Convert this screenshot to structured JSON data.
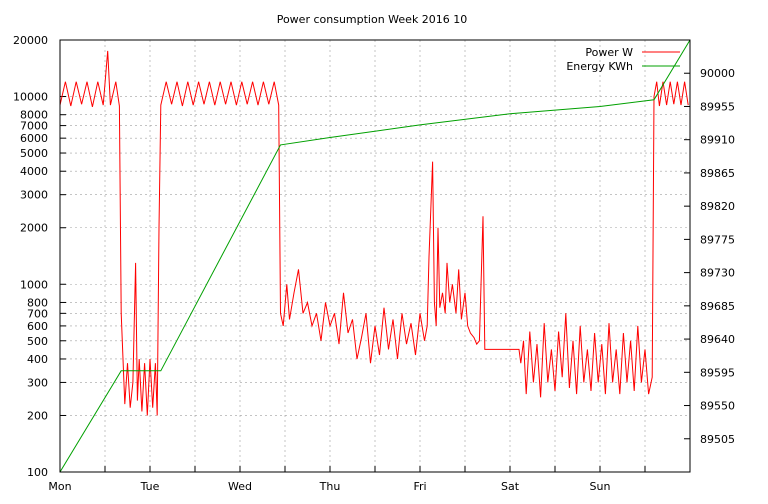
{
  "chart_data": {
    "type": "line",
    "title": "Power consumption Week 2016 10",
    "xlabel": "",
    "ylabel": "",
    "x_ticks": [
      "Mon",
      "Tue",
      "Wed",
      "Thu",
      "Fri",
      "Sat",
      "Sun"
    ],
    "x_range_days": [
      0,
      7
    ],
    "y_left": {
      "scale": "log",
      "range": [
        100,
        20000
      ],
      "ticks": [
        100,
        200,
        300,
        400,
        500,
        600,
        700,
        800,
        1000,
        2000,
        3000,
        4000,
        5000,
        6000,
        7000,
        8000,
        10000,
        20000
      ]
    },
    "y_right": {
      "scale": "linear",
      "range": [
        89460,
        90045
      ],
      "ticks": [
        89505,
        89550,
        89595,
        89640,
        89685,
        89730,
        89775,
        89820,
        89865,
        89910,
        89955,
        90000
      ]
    },
    "grid": true,
    "legend_position": "top-right",
    "series": [
      {
        "name": "Power W",
        "color": "#ff0000",
        "axis": "left",
        "points": [
          [
            0.0,
            9000
          ],
          [
            0.06,
            12000
          ],
          [
            0.12,
            8900
          ],
          [
            0.18,
            12000
          ],
          [
            0.24,
            9100
          ],
          [
            0.3,
            12000
          ],
          [
            0.36,
            8800
          ],
          [
            0.42,
            12000
          ],
          [
            0.48,
            9000
          ],
          [
            0.53,
            17500
          ],
          [
            0.56,
            9000
          ],
          [
            0.62,
            12000
          ],
          [
            0.66,
            8900
          ],
          [
            0.68,
            700
          ],
          [
            0.7,
            400
          ],
          [
            0.72,
            230
          ],
          [
            0.75,
            380
          ],
          [
            0.78,
            220
          ],
          [
            0.81,
            300
          ],
          [
            0.84,
            1300
          ],
          [
            0.86,
            240
          ],
          [
            0.88,
            400
          ],
          [
            0.91,
            210
          ],
          [
            0.94,
            380
          ],
          [
            0.97,
            200
          ],
          [
            1.0,
            400
          ],
          [
            1.03,
            220
          ],
          [
            1.06,
            380
          ],
          [
            1.08,
            200
          ],
          [
            1.1,
            2000
          ],
          [
            1.12,
            9000
          ],
          [
            1.18,
            12000
          ],
          [
            1.24,
            9100
          ],
          [
            1.3,
            12000
          ],
          [
            1.36,
            8900
          ],
          [
            1.42,
            12000
          ],
          [
            1.48,
            9000
          ],
          [
            1.54,
            12000
          ],
          [
            1.6,
            9100
          ],
          [
            1.66,
            12000
          ],
          [
            1.72,
            9000
          ],
          [
            1.78,
            12000
          ],
          [
            1.84,
            9100
          ],
          [
            1.9,
            12000
          ],
          [
            1.96,
            9000
          ],
          [
            2.02,
            12000
          ],
          [
            2.08,
            9100
          ],
          [
            2.14,
            12000
          ],
          [
            2.2,
            9000
          ],
          [
            2.26,
            12000
          ],
          [
            2.32,
            9100
          ],
          [
            2.38,
            12000
          ],
          [
            2.43,
            9000
          ],
          [
            2.45,
            700
          ],
          [
            2.48,
            600
          ],
          [
            2.52,
            1000
          ],
          [
            2.55,
            650
          ],
          [
            2.6,
            900
          ],
          [
            2.65,
            1200
          ],
          [
            2.7,
            700
          ],
          [
            2.75,
            800
          ],
          [
            2.8,
            600
          ],
          [
            2.85,
            700
          ],
          [
            2.9,
            500
          ],
          [
            2.95,
            800
          ],
          [
            3.0,
            600
          ],
          [
            3.05,
            700
          ],
          [
            3.1,
            480
          ],
          [
            3.15,
            900
          ],
          [
            3.2,
            550
          ],
          [
            3.25,
            650
          ],
          [
            3.3,
            400
          ],
          [
            3.35,
            520
          ],
          [
            3.4,
            700
          ],
          [
            3.45,
            380
          ],
          [
            3.5,
            600
          ],
          [
            3.55,
            420
          ],
          [
            3.6,
            750
          ],
          [
            3.65,
            450
          ],
          [
            3.7,
            650
          ],
          [
            3.75,
            400
          ],
          [
            3.8,
            700
          ],
          [
            3.85,
            480
          ],
          [
            3.9,
            620
          ],
          [
            3.95,
            420
          ],
          [
            4.0,
            700
          ],
          [
            4.05,
            500
          ],
          [
            4.08,
            600
          ],
          [
            4.1,
            1400
          ],
          [
            4.12,
            2500
          ],
          [
            4.14,
            4500
          ],
          [
            4.16,
            800
          ],
          [
            4.18,
            600
          ],
          [
            4.2,
            2000
          ],
          [
            4.22,
            750
          ],
          [
            4.25,
            900
          ],
          [
            4.28,
            700
          ],
          [
            4.3,
            1300
          ],
          [
            4.33,
            800
          ],
          [
            4.36,
            1000
          ],
          [
            4.4,
            700
          ],
          [
            4.43,
            1200
          ],
          [
            4.46,
            650
          ],
          [
            4.5,
            900
          ],
          [
            4.53,
            600
          ],
          [
            4.56,
            550
          ],
          [
            4.6,
            520
          ],
          [
            4.63,
            480
          ],
          [
            4.66,
            500
          ],
          [
            4.7,
            2300
          ],
          [
            4.72,
            450
          ],
          [
            4.8,
            450
          ],
          [
            4.9,
            450
          ],
          [
            5.0,
            450
          ],
          [
            5.1,
            450
          ],
          [
            5.12,
            380
          ],
          [
            5.15,
            500
          ],
          [
            5.18,
            260
          ],
          [
            5.22,
            560
          ],
          [
            5.26,
            300
          ],
          [
            5.3,
            480
          ],
          [
            5.34,
            250
          ],
          [
            5.38,
            620
          ],
          [
            5.42,
            300
          ],
          [
            5.46,
            450
          ],
          [
            5.5,
            270
          ],
          [
            5.54,
            560
          ],
          [
            5.58,
            320
          ],
          [
            5.62,
            700
          ],
          [
            5.66,
            280
          ],
          [
            5.7,
            500
          ],
          [
            5.74,
            260
          ],
          [
            5.78,
            600
          ],
          [
            5.82,
            300
          ],
          [
            5.86,
            450
          ],
          [
            5.9,
            270
          ],
          [
            5.94,
            550
          ],
          [
            5.98,
            300
          ],
          [
            6.02,
            480
          ],
          [
            6.06,
            260
          ],
          [
            6.1,
            620
          ],
          [
            6.14,
            300
          ],
          [
            6.18,
            450
          ],
          [
            6.22,
            260
          ],
          [
            6.26,
            550
          ],
          [
            6.3,
            300
          ],
          [
            6.34,
            500
          ],
          [
            6.38,
            270
          ],
          [
            6.42,
            600
          ],
          [
            6.46,
            300
          ],
          [
            6.5,
            450
          ],
          [
            6.54,
            260
          ],
          [
            6.58,
            320
          ],
          [
            6.6,
            10000
          ],
          [
            6.63,
            12000
          ],
          [
            6.66,
            8900
          ],
          [
            6.7,
            12000
          ],
          [
            6.74,
            9000
          ],
          [
            6.78,
            12000
          ],
          [
            6.82,
            9100
          ],
          [
            6.86,
            12000
          ],
          [
            6.9,
            9000
          ],
          [
            6.94,
            12000
          ],
          [
            6.98,
            9000
          ]
        ]
      },
      {
        "name": "Energy KWh",
        "color": "#00a000",
        "axis": "right",
        "points": [
          [
            0.0,
            89460
          ],
          [
            0.68,
            89597
          ],
          [
            1.12,
            89597
          ],
          [
            2.45,
            89903
          ],
          [
            3.0,
            89913
          ],
          [
            4.0,
            89930
          ],
          [
            5.0,
            89945
          ],
          [
            6.0,
            89955
          ],
          [
            6.6,
            89964
          ],
          [
            7.0,
            90050
          ]
        ]
      }
    ]
  }
}
